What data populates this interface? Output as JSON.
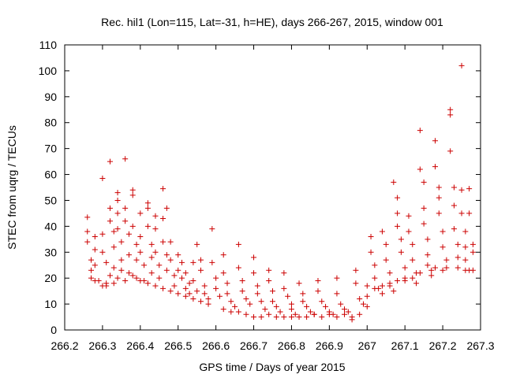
{
  "chart_data": {
    "type": "scatter",
    "title": "Rec. hil1 (Lon=115, Lat=-31, h=HE), days 266-267, 2015, window 001",
    "xlabel": "GPS time / Days of year 2015",
    "ylabel": "STEC from uqrg / TECUs",
    "xlim": [
      266.2,
      267.3
    ],
    "ylim": [
      0,
      110
    ],
    "xticks": [
      266.2,
      266.3,
      266.4,
      266.5,
      266.6,
      266.7,
      266.8,
      266.9,
      267,
      267.1,
      267.2,
      267.3
    ],
    "xtick_labels": [
      "266.2",
      "266.3",
      "266.4",
      "266.5",
      "266.6",
      "266.7",
      "266.8",
      "266.9",
      "267",
      "267.1",
      "267.2",
      "267.3"
    ],
    "yticks": [
      0,
      10,
      20,
      30,
      40,
      50,
      60,
      70,
      80,
      90,
      100,
      110
    ],
    "ytick_labels": [
      "0",
      "10",
      "20",
      "30",
      "40",
      "50",
      "60",
      "70",
      "80",
      "90",
      "100",
      "110"
    ],
    "grid": false,
    "marker": "+",
    "color": "#cc0000",
    "series": [
      {
        "name": "",
        "points": [
          [
            266.26,
            43.5
          ],
          [
            266.26,
            38
          ],
          [
            266.26,
            34
          ],
          [
            266.27,
            27
          ],
          [
            266.27,
            23
          ],
          [
            266.27,
            20
          ],
          [
            266.28,
            36
          ],
          [
            266.28,
            31
          ],
          [
            266.28,
            25
          ],
          [
            266.29,
            19
          ],
          [
            266.3,
            58.5
          ],
          [
            266.3,
            37
          ],
          [
            266.3,
            30
          ],
          [
            266.31,
            26
          ],
          [
            266.31,
            18
          ],
          [
            266.31,
            17
          ],
          [
            266.32,
            65
          ],
          [
            266.32,
            47
          ],
          [
            266.32,
            42
          ],
          [
            266.33,
            38
          ],
          [
            266.33,
            32
          ],
          [
            266.33,
            24
          ],
          [
            266.33,
            18
          ],
          [
            266.34,
            53
          ],
          [
            266.34,
            50
          ],
          [
            266.34,
            45
          ],
          [
            266.34,
            39
          ],
          [
            266.35,
            34
          ],
          [
            266.35,
            27
          ],
          [
            266.35,
            23
          ],
          [
            266.36,
            66
          ],
          [
            266.36,
            47
          ],
          [
            266.36,
            42
          ],
          [
            266.37,
            37
          ],
          [
            266.37,
            29
          ],
          [
            266.37,
            22
          ],
          [
            266.38,
            54
          ],
          [
            266.38,
            52
          ],
          [
            266.38,
            40
          ],
          [
            266.39,
            33
          ],
          [
            266.39,
            27
          ],
          [
            266.39,
            20
          ],
          [
            266.4,
            45
          ],
          [
            266.4,
            36
          ],
          [
            266.4,
            30
          ],
          [
            266.41,
            25
          ],
          [
            266.41,
            19
          ],
          [
            266.42,
            49
          ],
          [
            266.42,
            47
          ],
          [
            266.42,
            40
          ],
          [
            266.43,
            33
          ],
          [
            266.43,
            28
          ],
          [
            266.43,
            22
          ],
          [
            266.44,
            44
          ],
          [
            266.44,
            39
          ],
          [
            266.44,
            30
          ],
          [
            266.45,
            25
          ],
          [
            266.45,
            20
          ],
          [
            266.46,
            54.5
          ],
          [
            266.46,
            43
          ],
          [
            266.46,
            34
          ],
          [
            266.47,
            47
          ],
          [
            266.47,
            29
          ],
          [
            266.47,
            23
          ],
          [
            266.48,
            34
          ],
          [
            266.48,
            27
          ],
          [
            266.49,
            21
          ],
          [
            266.49,
            17
          ],
          [
            266.5,
            29
          ],
          [
            266.5,
            23
          ],
          [
            266.51,
            26
          ],
          [
            266.51,
            20
          ],
          [
            266.52,
            16
          ],
          [
            266.52,
            22
          ],
          [
            266.53,
            18
          ],
          [
            266.53,
            14
          ],
          [
            266.54,
            26
          ],
          [
            266.54,
            19
          ],
          [
            266.55,
            15
          ],
          [
            266.55,
            33
          ],
          [
            266.56,
            27
          ],
          [
            266.56,
            23
          ],
          [
            266.57,
            17
          ],
          [
            266.57,
            14
          ],
          [
            266.58,
            12
          ],
          [
            266.59,
            39
          ],
          [
            266.59,
            26
          ],
          [
            266.6,
            20
          ],
          [
            266.6,
            16
          ],
          [
            266.61,
            13
          ],
          [
            266.62,
            29
          ],
          [
            266.62,
            22
          ],
          [
            266.63,
            18
          ],
          [
            266.63,
            14
          ],
          [
            266.64,
            11
          ],
          [
            266.65,
            9
          ],
          [
            266.66,
            33
          ],
          [
            266.66,
            24
          ],
          [
            266.67,
            19
          ],
          [
            266.67,
            15
          ],
          [
            266.68,
            12
          ],
          [
            266.69,
            10
          ],
          [
            266.7,
            28
          ],
          [
            266.7,
            22
          ],
          [
            266.71,
            17
          ],
          [
            266.71,
            14
          ],
          [
            266.72,
            11
          ],
          [
            266.73,
            8
          ],
          [
            266.74,
            23
          ],
          [
            266.74,
            19
          ],
          [
            266.75,
            15
          ],
          [
            266.75,
            11
          ],
          [
            266.76,
            9
          ],
          [
            266.77,
            7
          ],
          [
            266.78,
            22
          ],
          [
            266.78,
            16
          ],
          [
            266.79,
            13
          ],
          [
            266.8,
            10
          ],
          [
            266.8,
            8
          ],
          [
            266.81,
            6
          ],
          [
            266.82,
            18
          ],
          [
            266.83,
            14
          ],
          [
            266.83,
            11
          ],
          [
            266.84,
            9
          ],
          [
            266.85,
            7
          ],
          [
            266.86,
            6
          ],
          [
            266.87,
            19
          ],
          [
            266.87,
            15
          ],
          [
            266.88,
            11
          ],
          [
            266.89,
            9
          ],
          [
            266.9,
            7
          ],
          [
            266.91,
            6
          ],
          [
            266.92,
            20
          ],
          [
            266.92,
            14
          ],
          [
            266.93,
            10
          ],
          [
            266.94,
            8
          ],
          [
            266.95,
            7
          ],
          [
            266.96,
            5
          ],
          [
            266.97,
            23
          ],
          [
            266.97,
            18
          ],
          [
            266.98,
            12
          ],
          [
            266.99,
            10
          ],
          [
            267,
            9
          ],
          [
            267.0,
            17
          ],
          [
            266.7,
            5
          ],
          [
            266.72,
            5
          ],
          [
            266.74,
            6
          ],
          [
            266.76,
            5
          ],
          [
            266.78,
            5
          ],
          [
            266.8,
            5
          ],
          [
            266.82,
            5
          ],
          [
            266.84,
            5
          ],
          [
            266.86,
            6
          ],
          [
            266.88,
            5
          ],
          [
            266.9,
            6
          ],
          [
            266.92,
            5
          ],
          [
            266.94,
            6
          ],
          [
            266.96,
            4
          ],
          [
            266.98,
            6
          ],
          [
            266.62,
            8
          ],
          [
            266.64,
            7
          ],
          [
            266.66,
            7
          ],
          [
            266.68,
            6
          ],
          [
            266.58,
            10
          ],
          [
            266.56,
            11
          ],
          [
            266.54,
            12
          ],
          [
            266.52,
            13
          ],
          [
            266.5,
            14
          ],
          [
            266.48,
            15
          ],
          [
            266.46,
            16
          ],
          [
            266.44,
            17
          ],
          [
            266.42,
            18
          ],
          [
            266.4,
            19
          ],
          [
            266.38,
            21
          ],
          [
            266.36,
            19
          ],
          [
            266.34,
            20
          ],
          [
            266.32,
            21
          ],
          [
            266.3,
            17
          ],
          [
            266.28,
            19
          ],
          [
            267.01,
            36
          ],
          [
            267.01,
            30
          ],
          [
            267.02,
            25
          ],
          [
            267.02,
            20
          ],
          [
            267.03,
            16
          ],
          [
            267.04,
            14
          ],
          [
            267.04,
            38
          ],
          [
            267.05,
            33
          ],
          [
            267.05,
            27
          ],
          [
            267.06,
            22
          ],
          [
            267.06,
            17
          ],
          [
            267.07,
            15
          ],
          [
            267.07,
            57
          ],
          [
            267.08,
            51
          ],
          [
            267.08,
            45
          ],
          [
            267.08,
            40
          ],
          [
            267.09,
            35
          ],
          [
            267.09,
            30
          ],
          [
            267.1,
            24
          ],
          [
            267.1,
            19
          ],
          [
            267.11,
            44
          ],
          [
            267.11,
            38
          ],
          [
            267.12,
            33
          ],
          [
            267.12,
            27
          ],
          [
            267.13,
            22
          ],
          [
            267.13,
            18
          ],
          [
            267.14,
            77
          ],
          [
            267.14,
            62
          ],
          [
            267.15,
            57
          ],
          [
            267.15,
            47
          ],
          [
            267.15,
            41
          ],
          [
            267.16,
            35
          ],
          [
            267.16,
            29
          ],
          [
            267.17,
            23
          ],
          [
            267.17,
            21
          ],
          [
            267.18,
            73
          ],
          [
            267.18,
            63
          ],
          [
            267.19,
            55
          ],
          [
            267.19,
            51
          ],
          [
            267.19,
            45
          ],
          [
            267.2,
            38
          ],
          [
            267.2,
            32
          ],
          [
            267.21,
            27
          ],
          [
            267.21,
            24
          ],
          [
            267.22,
            85
          ],
          [
            267.22,
            69
          ],
          [
            267.22,
            83
          ],
          [
            267.23,
            55
          ],
          [
            267.23,
            48
          ],
          [
            267.23,
            39
          ],
          [
            267.24,
            33
          ],
          [
            267.24,
            28
          ],
          [
            267.24,
            24
          ],
          [
            267.25,
            102
          ],
          [
            267.25,
            54
          ],
          [
            267.25,
            45
          ],
          [
            267.26,
            38
          ],
          [
            267.26,
            32
          ],
          [
            267.26,
            27
          ],
          [
            267.27,
            23
          ],
          [
            267.27,
            54.5
          ],
          [
            267.27,
            45
          ],
          [
            267.28,
            33
          ],
          [
            267.28,
            30
          ],
          [
            267.28,
            23
          ],
          [
            267.26,
            23
          ],
          [
            267.2,
            23
          ],
          [
            267.18,
            24
          ],
          [
            267.16,
            25
          ],
          [
            267.14,
            22
          ],
          [
            267.12,
            20
          ],
          [
            267.1,
            20
          ],
          [
            267.08,
            19
          ],
          [
            267.06,
            18
          ],
          [
            267.04,
            17
          ],
          [
            267.02,
            16
          ],
          [
            267.0,
            13
          ]
        ]
      }
    ]
  }
}
